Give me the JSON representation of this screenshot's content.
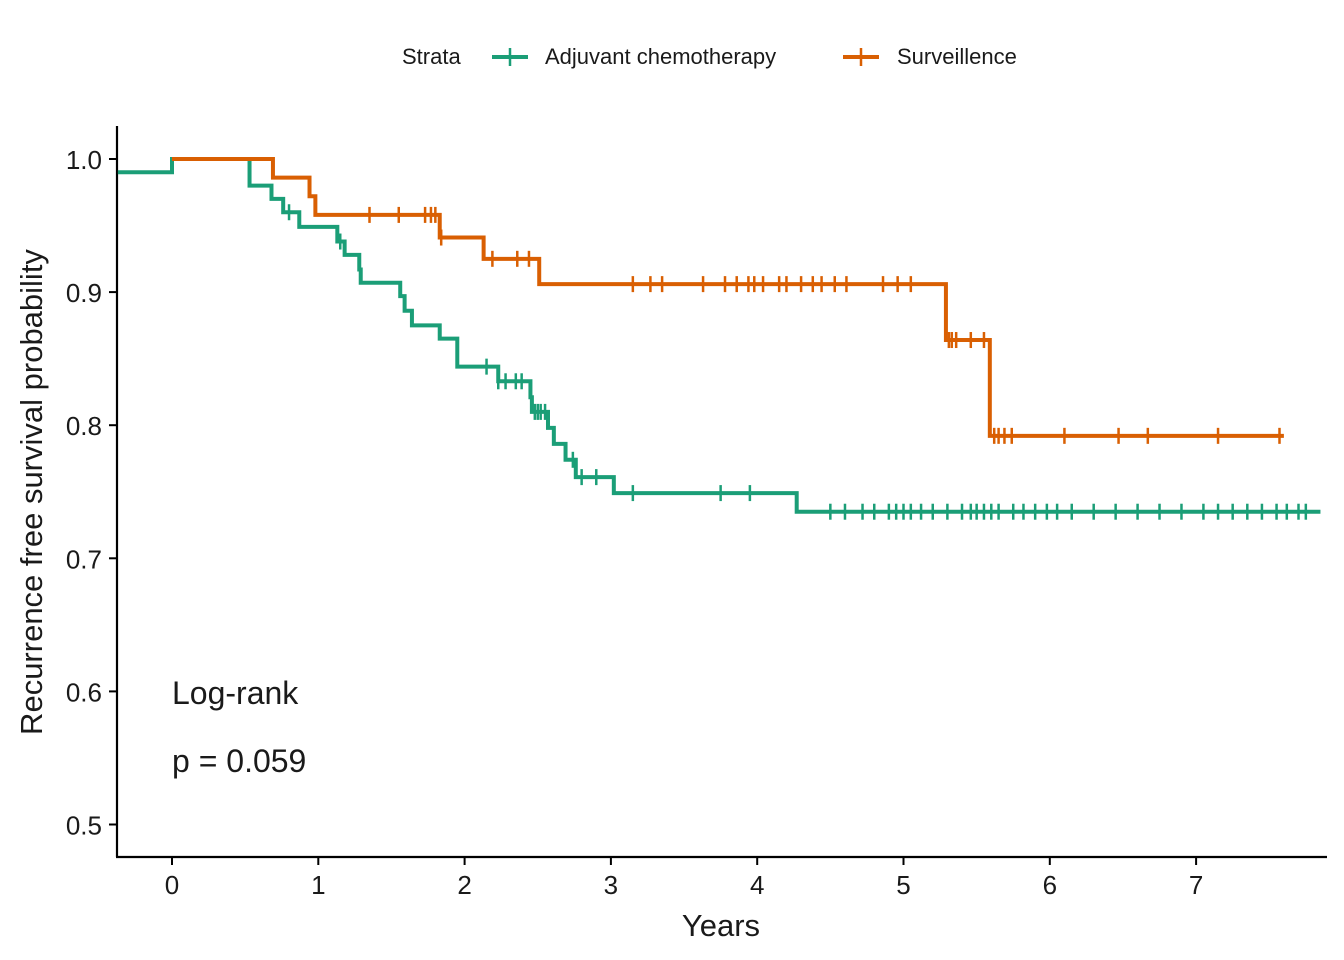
{
  "chart_data": {
    "type": "line",
    "subtype": "kaplan-meier step curves with censor ticks",
    "title": "",
    "xlabel": "Years",
    "ylabel": "Recurrence free survival probability",
    "xlim": [
      -0.37,
      7.85
    ],
    "ylim": [
      0.475,
      1.025
    ],
    "x_ticks": [
      0,
      1,
      2,
      3,
      4,
      5,
      6,
      7
    ],
    "x_tick_labels": [
      "0",
      "1",
      "2",
      "3",
      "4",
      "5",
      "6",
      "7"
    ],
    "y_ticks": [
      0.5,
      0.6,
      0.7,
      0.8,
      0.9,
      1.0
    ],
    "y_tick_labels": [
      "0.5",
      "0.6",
      "0.7",
      "0.8",
      "0.9",
      "1.0"
    ],
    "grid": false,
    "legend": {
      "title": "Strata",
      "position": "top"
    },
    "annotation": {
      "line1": "Log-rank",
      "line2": "p = 0.059"
    },
    "series": [
      {
        "name": "Adjuvant chemotherapy",
        "color": "#1B9E77",
        "steps": [
          [
            -0.37,
            0.99
          ],
          [
            0.0,
            1.0
          ],
          [
            0.53,
            0.98
          ],
          [
            0.68,
            0.97
          ],
          [
            0.76,
            0.96
          ],
          [
            0.87,
            0.949
          ],
          [
            1.13,
            0.938
          ],
          [
            1.18,
            0.928
          ],
          [
            1.28,
            0.917
          ],
          [
            1.29,
            0.907
          ],
          [
            1.56,
            0.897
          ],
          [
            1.59,
            0.886
          ],
          [
            1.64,
            0.875
          ],
          [
            1.83,
            0.865
          ],
          [
            1.95,
            0.844
          ],
          [
            2.23,
            0.833
          ],
          [
            2.45,
            0.821
          ],
          [
            2.46,
            0.81
          ],
          [
            2.57,
            0.798
          ],
          [
            2.61,
            0.786
          ],
          [
            2.69,
            0.774
          ],
          [
            2.76,
            0.761
          ],
          [
            3.02,
            0.749
          ],
          [
            4.27,
            0.735
          ],
          [
            7.85,
            0.735
          ]
        ],
        "censor_x": [
          0.8,
          1.15,
          2.15,
          2.23,
          2.28,
          2.35,
          2.39,
          2.48,
          2.5,
          2.52,
          2.55,
          2.74,
          2.8,
          2.9,
          3.15,
          3.75,
          3.95,
          4.5,
          4.6,
          4.72,
          4.8,
          4.9,
          4.95,
          5.0,
          5.05,
          5.12,
          5.2,
          5.3,
          5.4,
          5.46,
          5.5,
          5.55,
          5.6,
          5.65,
          5.75,
          5.82,
          5.9,
          5.98,
          6.05,
          6.15,
          6.3,
          6.45,
          6.6,
          6.75,
          6.9,
          7.05,
          7.15,
          7.25,
          7.35,
          7.45,
          7.55,
          7.62,
          7.7,
          7.75
        ]
      },
      {
        "name": "Surveillence",
        "color": "#D95F02",
        "steps": [
          [
            0.0,
            1.0
          ],
          [
            0.69,
            0.986
          ],
          [
            0.94,
            0.972
          ],
          [
            0.98,
            0.958
          ],
          [
            1.83,
            0.941
          ],
          [
            2.13,
            0.925
          ],
          [
            2.51,
            0.906
          ],
          [
            5.29,
            0.864
          ],
          [
            5.59,
            0.792
          ],
          [
            7.6,
            0.792
          ]
        ],
        "censor_x": [
          1.35,
          1.55,
          1.73,
          1.77,
          1.8,
          1.84,
          2.19,
          2.36,
          2.44,
          3.15,
          3.27,
          3.35,
          3.63,
          3.78,
          3.86,
          3.94,
          3.98,
          4.04,
          4.15,
          4.2,
          4.3,
          4.38,
          4.44,
          4.53,
          4.61,
          4.86,
          4.96,
          5.05,
          5.31,
          5.33,
          5.36,
          5.46,
          5.55,
          5.62,
          5.65,
          5.69,
          5.74,
          6.1,
          6.47,
          6.67,
          7.15,
          7.57
        ]
      }
    ]
  }
}
